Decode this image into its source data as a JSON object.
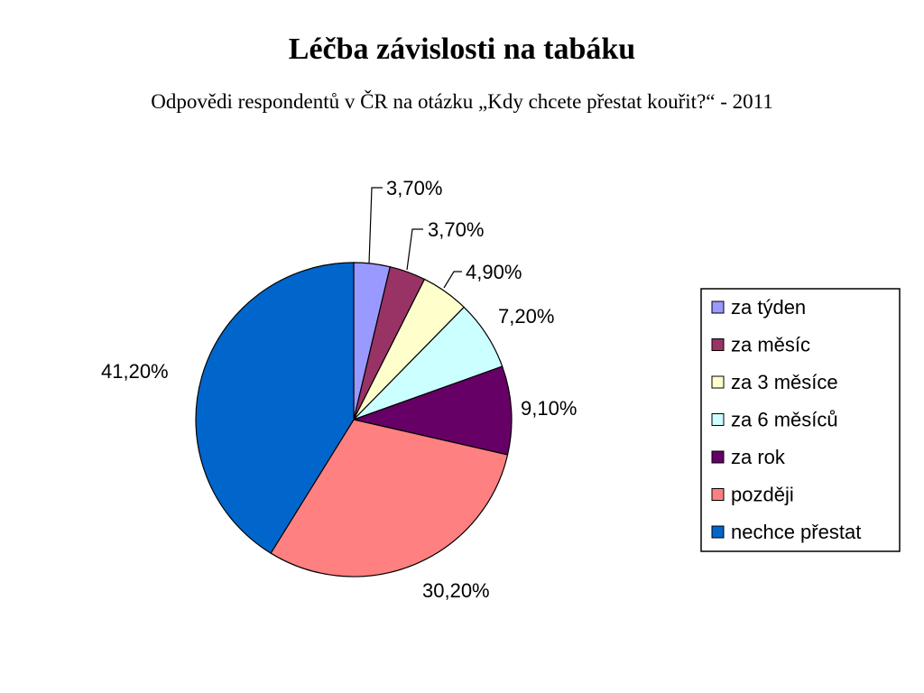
{
  "title": "Léčba závislosti na tabáku",
  "subtitle": "Odpovědi respondentů v ČR na otázku „Kdy chcete přestat kouřit?“ - 2011",
  "chart_data": {
    "type": "pie",
    "categories": [
      "za týden",
      "za měsíc",
      "za 3 měsíce",
      "za 6 měsíců",
      "za rok",
      "později",
      "nechce přestat"
    ],
    "values": [
      3.7,
      3.7,
      4.9,
      7.2,
      9.1,
      30.2,
      41.2
    ],
    "labels": [
      "3,70%",
      "3,70%",
      "4,90%",
      "7,20%",
      "9,10%",
      "30,20%",
      "41,20%"
    ],
    "colors": [
      "#9999ff",
      "#993366",
      "#ffffcc",
      "#ccffff",
      "#660066",
      "#ff8080",
      "#0066cc"
    ],
    "legend_position": "right",
    "start_angle": "12 o'clock",
    "direction": "clockwise"
  }
}
